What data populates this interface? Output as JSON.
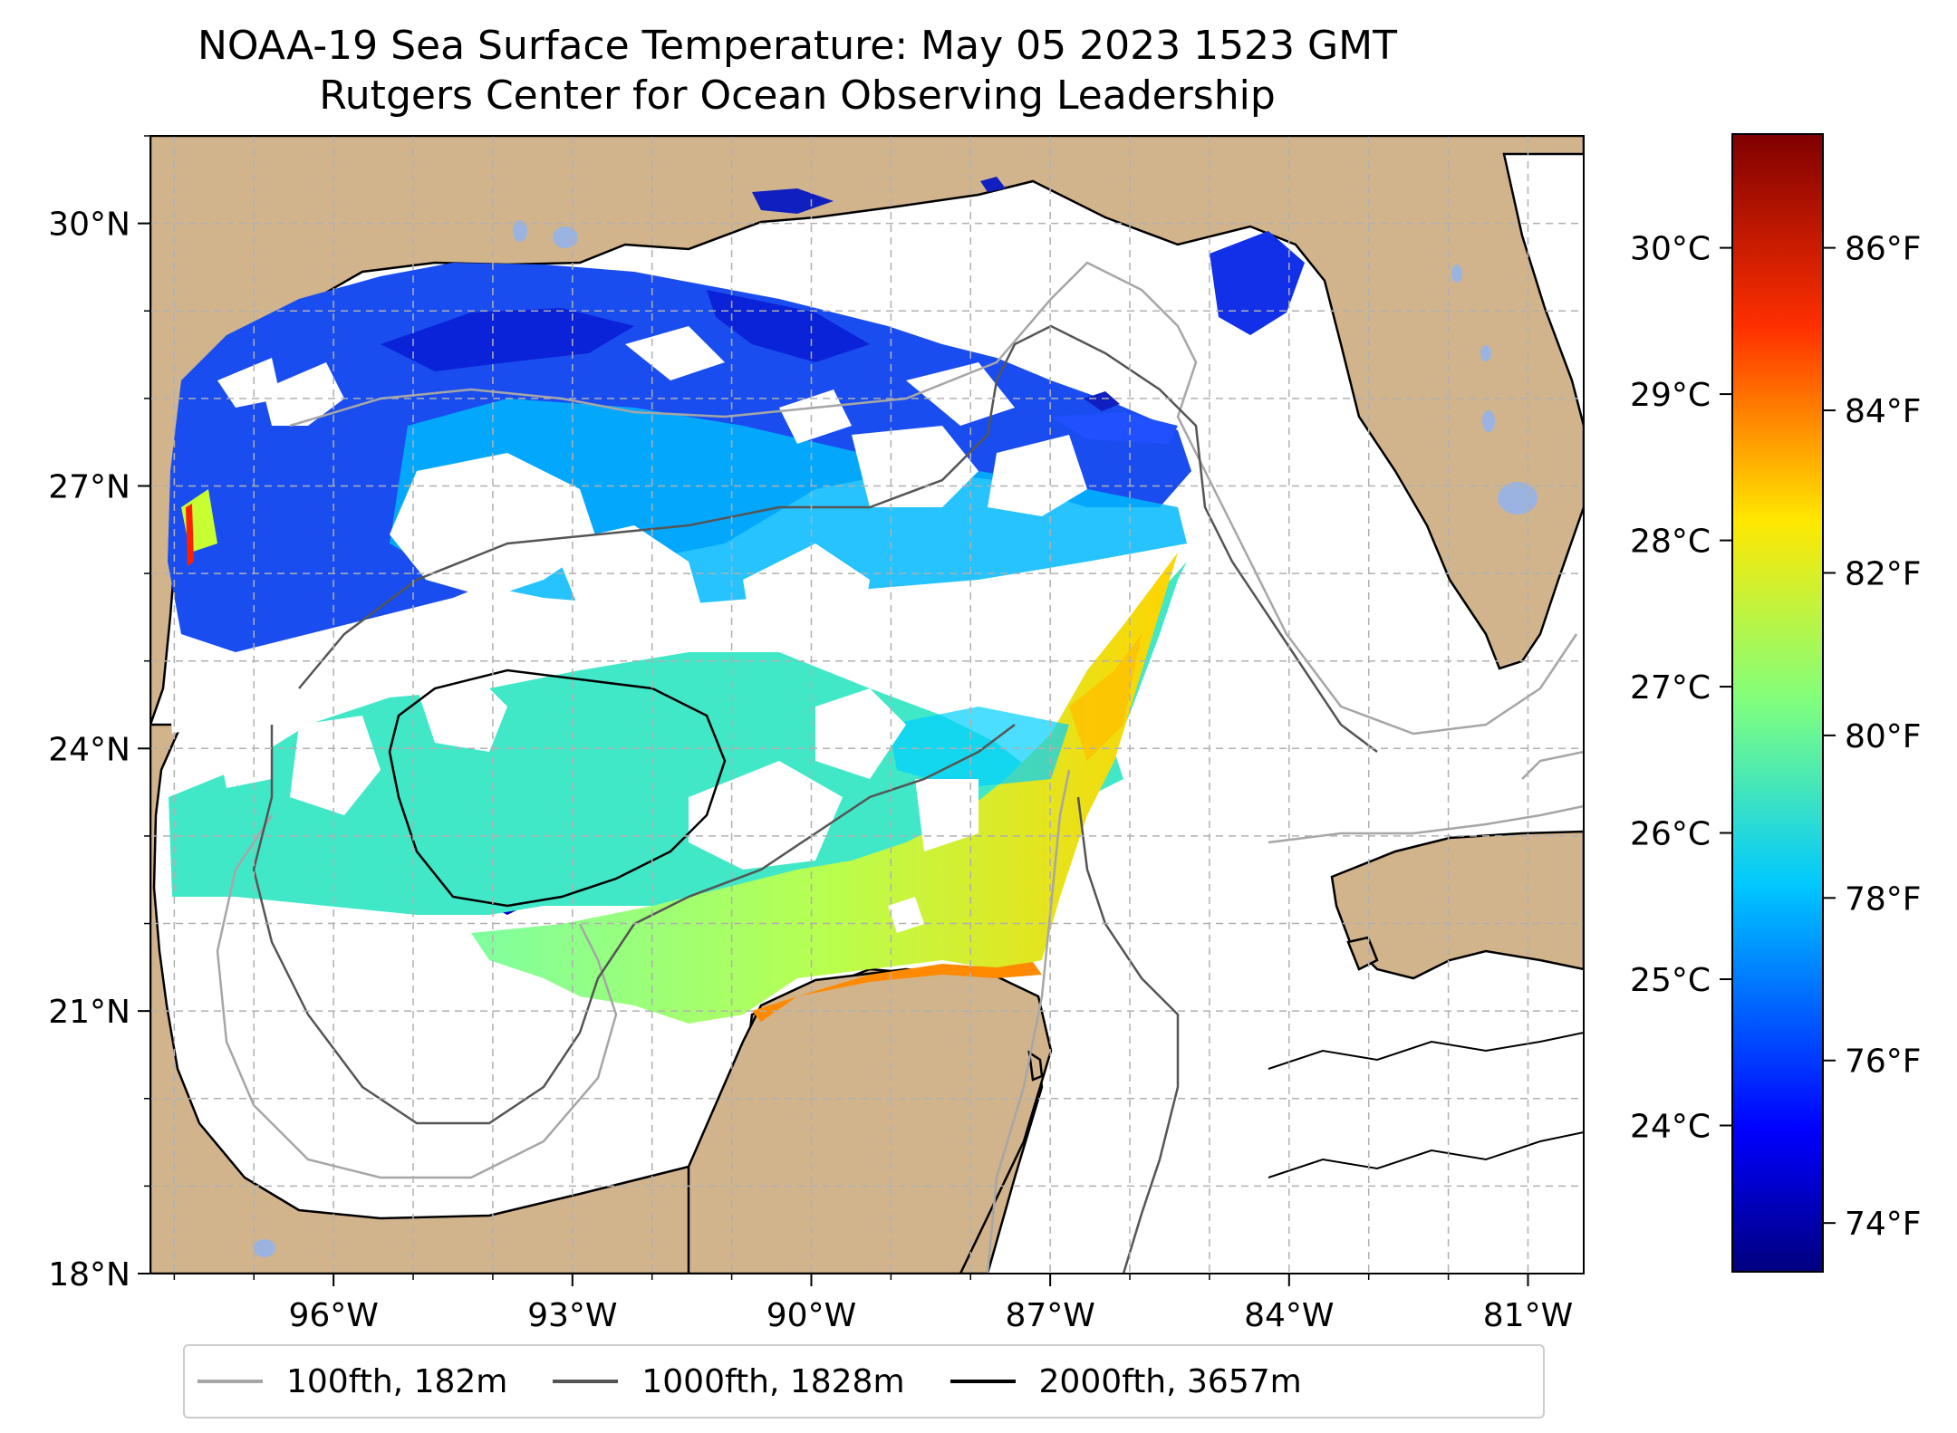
{
  "title": {
    "line1": "NOAA-19 Sea Surface Temperature: May 05 2023 1523 GMT",
    "line2": "Rutgers Center for Ocean Observing Leadership"
  },
  "map": {
    "lon_range": [
      -98.3,
      -80.3
    ],
    "lat_range": [
      18.0,
      31.0
    ],
    "x_ticks": [
      {
        "lon": -96,
        "label": "96°W"
      },
      {
        "lon": -93,
        "label": "93°W"
      },
      {
        "lon": -90,
        "label": "90°W"
      },
      {
        "lon": -87,
        "label": "87°W"
      },
      {
        "lon": -84,
        "label": "84°W"
      },
      {
        "lon": -81,
        "label": "81°W"
      }
    ],
    "y_ticks": [
      {
        "lat": 30,
        "label": "30°N"
      },
      {
        "lat": 27,
        "label": "27°N"
      },
      {
        "lat": 24,
        "label": "24°N"
      },
      {
        "lat": 21,
        "label": "21°N"
      },
      {
        "lat": 18,
        "label": "18°N"
      }
    ],
    "gridlines": true,
    "land_color": "#d2b48c",
    "lake_color": "#9ab3e0",
    "cloud_mask_color": "#ffffff"
  },
  "colorbar": {
    "colormap": "jet",
    "range_f": [
      73.4,
      87.4
    ],
    "fahrenheit_ticks": [
      {
        "value": 74,
        "label": "74°F"
      },
      {
        "value": 76,
        "label": "76°F"
      },
      {
        "value": 78,
        "label": "78°F"
      },
      {
        "value": 80,
        "label": "80°F"
      },
      {
        "value": 82,
        "label": "82°F"
      },
      {
        "value": 84,
        "label": "84°F"
      },
      {
        "value": 86,
        "label": "86°F"
      }
    ],
    "celsius_ticks": [
      {
        "value": 24,
        "label": "24°C"
      },
      {
        "value": 25,
        "label": "25°C"
      },
      {
        "value": 26,
        "label": "26°C"
      },
      {
        "value": 27,
        "label": "27°C"
      },
      {
        "value": 28,
        "label": "28°C"
      },
      {
        "value": 29,
        "label": "29°C"
      },
      {
        "value": 30,
        "label": "30°C"
      }
    ]
  },
  "legend": {
    "location": "bottom",
    "items": [
      {
        "label": "100fth, 182m",
        "color": "#a6a6a6"
      },
      {
        "label": "1000fth, 1828m",
        "color": "#555555"
      },
      {
        "label": "2000fth, 3657m",
        "color": "#000000"
      }
    ]
  }
}
